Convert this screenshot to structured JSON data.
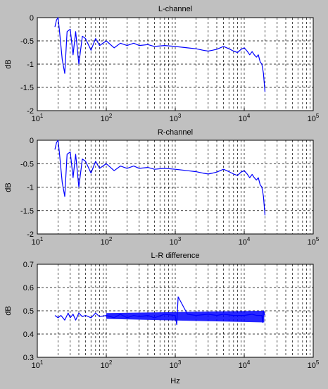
{
  "figure": {
    "background": "#c0c0c0",
    "axes_background": "#ffffff",
    "line_color": "#0000ff",
    "grid": true,
    "grid_style": "dashed"
  },
  "chart_data": [
    {
      "type": "line",
      "title": "L-channel",
      "xlabel": "",
      "ylabel": "dB",
      "xscale": "log",
      "xlim": [
        10,
        100000
      ],
      "ylim": [
        -2,
        0
      ],
      "xticks": [
        10,
        100,
        1000,
        10000,
        100000
      ],
      "xtick_labels": [
        {
          "base": "10",
          "exp": "1"
        },
        {
          "base": "10",
          "exp": "2"
        },
        {
          "base": "10",
          "exp": "3"
        },
        {
          "base": "10",
          "exp": "4"
        },
        {
          "base": "10",
          "exp": "5"
        }
      ],
      "yticks": [
        -2,
        -1.5,
        -1,
        -0.5,
        0
      ],
      "ytick_labels": [
        "-2",
        "-1.5",
        "-1",
        "-0.5",
        "0"
      ],
      "series": [
        {
          "color": "#0000ff",
          "x": [
            18,
            19,
            20,
            21,
            23,
            25,
            27,
            30,
            33,
            36,
            40,
            45,
            50,
            60,
            70,
            80,
            100,
            130,
            160,
            200,
            250,
            300,
            400,
            500,
            700,
            1000,
            1500,
            2000,
            2500,
            3000,
            3500,
            4000,
            5000,
            6000,
            7000,
            8000,
            9000,
            10000,
            11000,
            12000,
            13000,
            14000,
            15000,
            16000,
            17000,
            18000,
            18500,
            19000,
            19500,
            20000
          ],
          "y": [
            -0.2,
            -0.05,
            0,
            -0.3,
            -0.9,
            -1.2,
            -0.3,
            -0.25,
            -0.8,
            -0.3,
            -1.0,
            -0.4,
            -0.45,
            -0.7,
            -0.45,
            -0.6,
            -0.5,
            -0.65,
            -0.55,
            -0.6,
            -0.55,
            -0.6,
            -0.58,
            -0.62,
            -0.6,
            -0.62,
            -0.65,
            -0.67,
            -0.7,
            -0.72,
            -0.7,
            -0.68,
            -0.62,
            -0.67,
            -0.72,
            -0.75,
            -0.68,
            -0.65,
            -0.72,
            -0.8,
            -0.73,
            -0.8,
            -0.85,
            -0.8,
            -0.95,
            -1.0,
            -1.1,
            -1.2,
            -1.4,
            -1.6
          ]
        }
      ]
    },
    {
      "type": "line",
      "title": "R-channel",
      "xlabel": "",
      "ylabel": "dB",
      "xscale": "log",
      "xlim": [
        10,
        100000
      ],
      "ylim": [
        -2,
        0
      ],
      "xticks": [
        10,
        100,
        1000,
        10000,
        100000
      ],
      "xtick_labels": [
        {
          "base": "10",
          "exp": "1"
        },
        {
          "base": "10",
          "exp": "2"
        },
        {
          "base": "10",
          "exp": "3"
        },
        {
          "base": "10",
          "exp": "4"
        },
        {
          "base": "10",
          "exp": "5"
        }
      ],
      "yticks": [
        -2,
        -1.5,
        -1,
        -0.5,
        0
      ],
      "ytick_labels": [
        "-2",
        "-1.5",
        "-1",
        "-0.5",
        "0"
      ],
      "series": [
        {
          "color": "#0000ff",
          "x": [
            18,
            19,
            20,
            21,
            23,
            25,
            27,
            30,
            33,
            36,
            40,
            45,
            50,
            60,
            70,
            80,
            100,
            130,
            160,
            200,
            250,
            300,
            400,
            500,
            700,
            1000,
            1500,
            2000,
            2500,
            3000,
            3500,
            4000,
            5000,
            6000,
            7000,
            8000,
            9000,
            10000,
            11000,
            12000,
            13000,
            14000,
            15000,
            16000,
            17000,
            18000,
            18500,
            19000,
            19500,
            20000
          ],
          "y": [
            -0.2,
            -0.05,
            0,
            -0.3,
            -0.9,
            -1.2,
            -0.3,
            -0.25,
            -0.8,
            -0.3,
            -1.0,
            -0.4,
            -0.45,
            -0.7,
            -0.45,
            -0.6,
            -0.5,
            -0.65,
            -0.55,
            -0.6,
            -0.55,
            -0.6,
            -0.58,
            -0.62,
            -0.6,
            -0.62,
            -0.65,
            -0.67,
            -0.7,
            -0.72,
            -0.7,
            -0.68,
            -0.62,
            -0.67,
            -0.72,
            -0.75,
            -0.68,
            -0.65,
            -0.72,
            -0.8,
            -0.73,
            -0.8,
            -0.85,
            -0.8,
            -0.95,
            -1.0,
            -1.1,
            -1.2,
            -1.4,
            -1.6
          ]
        }
      ]
    },
    {
      "type": "line",
      "title": "L-R difference",
      "xlabel": "Hz",
      "ylabel": "dB",
      "xscale": "log",
      "xlim": [
        10,
        100000
      ],
      "ylim": [
        0.3,
        0.7
      ],
      "xticks": [
        10,
        100,
        1000,
        10000,
        100000
      ],
      "xtick_labels": [
        {
          "base": "10",
          "exp": "1"
        },
        {
          "base": "10",
          "exp": "2"
        },
        {
          "base": "10",
          "exp": "3"
        },
        {
          "base": "10",
          "exp": "4"
        },
        {
          "base": "10",
          "exp": "5"
        }
      ],
      "yticks": [
        0.3,
        0.4,
        0.5,
        0.6,
        0.7
      ],
      "ytick_labels": [
        "0.3",
        "0.4",
        "0.5",
        "0.6",
        "0.7"
      ],
      "series": [
        {
          "color": "#0000ff",
          "x": [
            18,
            20,
            22,
            25,
            28,
            30,
            33,
            36,
            40,
            45,
            50,
            60,
            70,
            80,
            100,
            130,
            160,
            200,
            250,
            300,
            400,
            500,
            700,
            1000,
            1050,
            1100,
            1500,
            2000,
            3000,
            4000,
            5000,
            7000,
            10000,
            13000,
            15000,
            18000,
            18500,
            19000,
            20000
          ],
          "y": [
            0.48,
            0.47,
            0.48,
            0.46,
            0.49,
            0.47,
            0.485,
            0.46,
            0.49,
            0.475,
            0.48,
            0.47,
            0.49,
            0.475,
            0.48,
            0.47,
            0.485,
            0.47,
            0.48,
            0.475,
            0.48,
            0.47,
            0.485,
            0.48,
            0.44,
            0.56,
            0.485,
            0.48,
            0.485,
            0.48,
            0.485,
            0.48,
            0.48,
            0.485,
            0.48,
            0.48,
            0.45,
            0.5,
            0.48
          ]
        }
      ],
      "band": {
        "x_start": 100,
        "x_end": 19500,
        "y_low_start": 0.465,
        "y_high_start": 0.49,
        "y_low_end": 0.45,
        "y_high_end": 0.5
      }
    }
  ]
}
